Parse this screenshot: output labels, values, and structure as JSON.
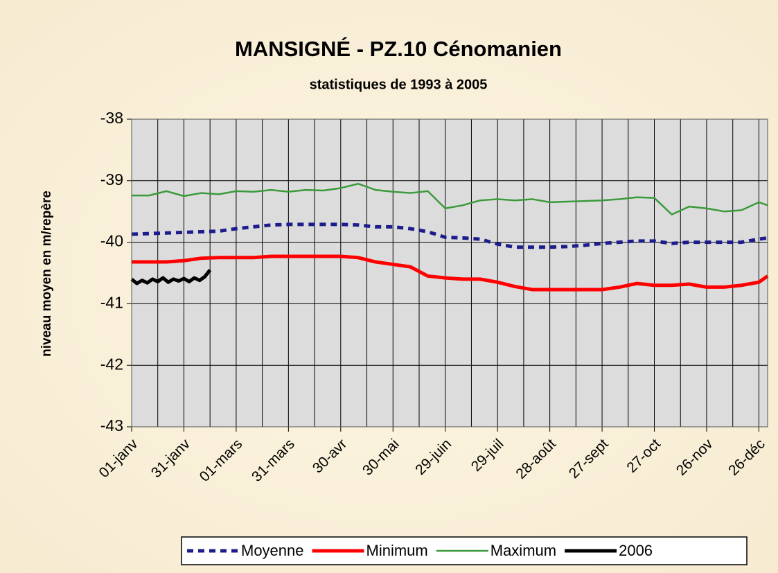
{
  "chart_data": {
    "type": "line",
    "title": "MANSIGNÉ - PZ.10 Cénomanien",
    "subtitle": "statistiques de 1993 à 2005",
    "y_label": "niveau moyen en m/repère",
    "x": [
      0,
      10,
      20,
      30,
      40,
      50,
      60,
      70,
      80,
      90,
      100,
      110,
      120,
      130,
      140,
      150,
      160,
      170,
      180,
      190,
      200,
      210,
      220,
      230,
      240,
      250,
      260,
      270,
      280,
      290,
      300,
      310,
      320,
      330,
      340,
      350,
      360,
      365
    ],
    "xlim": [
      0,
      365
    ],
    "xticks": [
      {
        "value": 0,
        "label": "01-janv"
      },
      {
        "value": 30,
        "label": "31-janv"
      },
      {
        "value": 60,
        "label": "01-mars"
      },
      {
        "value": 90,
        "label": "31-mars"
      },
      {
        "value": 120,
        "label": "30-avr"
      },
      {
        "value": 150,
        "label": "30-mai"
      },
      {
        "value": 180,
        "label": "29-juin"
      },
      {
        "value": 210,
        "label": "29-juil"
      },
      {
        "value": 240,
        "label": "28-août"
      },
      {
        "value": 270,
        "label": "27-sept"
      },
      {
        "value": 300,
        "label": "27-oct"
      },
      {
        "value": 330,
        "label": "26-nov"
      },
      {
        "value": 360,
        "label": "26-déc"
      }
    ],
    "xgrid": [
      0,
      15,
      30,
      45,
      60,
      75,
      90,
      105,
      120,
      135,
      150,
      165,
      180,
      195,
      210,
      225,
      240,
      255,
      270,
      285,
      300,
      315,
      330,
      345,
      360
    ],
    "ylim": [
      -43,
      -38
    ],
    "yticks": [
      -43,
      -42,
      -41,
      -40,
      -39,
      -38
    ],
    "grid": true,
    "legend": "bottom",
    "series": [
      {
        "name": "Moyenne",
        "color": "#1c1c8c",
        "style": "dashed",
        "values": [
          -39.87,
          -39.86,
          -39.85,
          -39.84,
          -39.83,
          -39.82,
          -39.78,
          -39.75,
          -39.72,
          -39.71,
          -39.71,
          -39.71,
          -39.71,
          -39.72,
          -39.75,
          -39.75,
          -39.78,
          -39.83,
          -39.92,
          -39.93,
          -39.95,
          -40.03,
          -40.08,
          -40.08,
          -40.08,
          -40.07,
          -40.05,
          -40.02,
          -40.0,
          -39.98,
          -39.98,
          -40.02,
          -40.0,
          -40.0,
          -40.0,
          -40.0,
          -39.95,
          -39.93
        ]
      },
      {
        "name": "Minimum",
        "color": "#ff0000",
        "style": "solid",
        "values": [
          -40.32,
          -40.32,
          -40.32,
          -40.3,
          -40.26,
          -40.25,
          -40.25,
          -40.25,
          -40.23,
          -40.23,
          -40.23,
          -40.23,
          -40.23,
          -40.25,
          -40.32,
          -40.36,
          -40.4,
          -40.55,
          -40.58,
          -40.6,
          -40.6,
          -40.65,
          -40.72,
          -40.77,
          -40.77,
          -40.77,
          -40.77,
          -40.77,
          -40.73,
          -40.67,
          -40.7,
          -40.7,
          -40.68,
          -40.73,
          -40.73,
          -40.7,
          -40.65,
          -40.55
        ]
      },
      {
        "name": "Maximum",
        "color": "#3a9a3a",
        "style": "solid",
        "values": [
          -39.24,
          -39.24,
          -39.17,
          -39.25,
          -39.2,
          -39.22,
          -39.17,
          -39.18,
          -39.15,
          -39.18,
          -39.15,
          -39.16,
          -39.12,
          -39.05,
          -39.15,
          -39.18,
          -39.2,
          -39.17,
          -39.45,
          -39.4,
          -39.32,
          -39.3,
          -39.32,
          -39.3,
          -39.35,
          -39.34,
          -39.33,
          -39.32,
          -39.3,
          -39.27,
          -39.28,
          -39.55,
          -39.42,
          -39.45,
          -39.5,
          -39.48,
          -39.35,
          -39.4
        ]
      },
      {
        "name": "2006",
        "color": "#000000",
        "style": "solid",
        "x": [
          0,
          3,
          6,
          9,
          12,
          15,
          18,
          21,
          24,
          27,
          30,
          33,
          36,
          39,
          42,
          45
        ],
        "values": [
          -40.6,
          -40.67,
          -40.62,
          -40.66,
          -40.6,
          -40.64,
          -40.58,
          -40.65,
          -40.6,
          -40.63,
          -40.59,
          -40.64,
          -40.58,
          -40.62,
          -40.56,
          -40.45
        ]
      }
    ]
  }
}
